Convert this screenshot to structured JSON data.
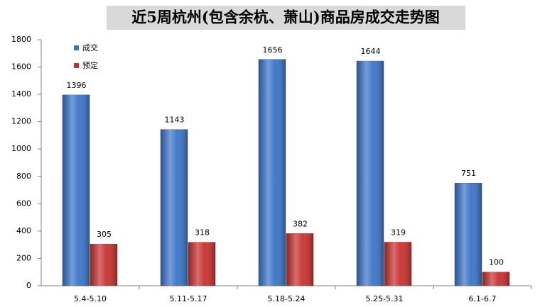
{
  "chart_data": {
    "type": "bar",
    "title": "近5周杭州(包含余杭、萧山)商品房成交走势图",
    "categories": [
      "5.4-5.10",
      "5.11-5.17",
      "5.18-5.24",
      "5.25-5.31",
      "6.1-6.7"
    ],
    "series": [
      {
        "name": "成交",
        "color": "#3a74c8",
        "values": [
          1396,
          1143,
          1656,
          1644,
          751
        ]
      },
      {
        "name": "预定",
        "color": "#c8302e",
        "values": [
          305,
          318,
          382,
          319,
          100
        ]
      }
    ],
    "ylim": [
      0,
      1800
    ],
    "yticks": [
      0,
      200,
      400,
      600,
      800,
      1000,
      1200,
      1400,
      1600,
      1800
    ],
    "grid": false,
    "legend": "top-left",
    "data_labels": true
  }
}
